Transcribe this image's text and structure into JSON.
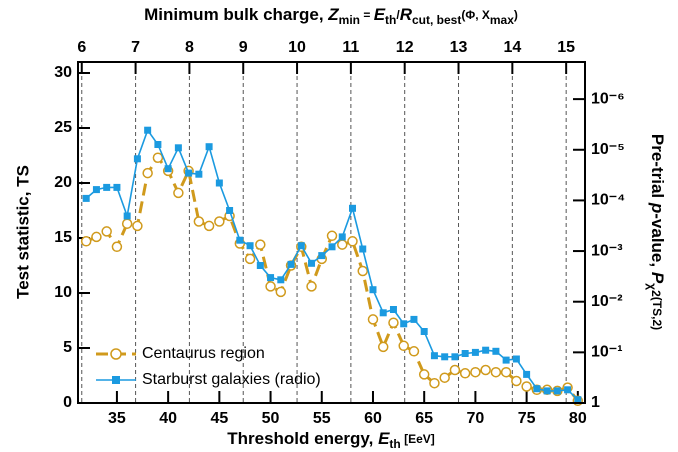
{
  "chart_data": {
    "type": "line",
    "xlabel": [
      "Threshold energy, ",
      "E",
      "th",
      "  [EeV]"
    ],
    "ylabel": "Test statistic, TS",
    "y2label": [
      "Pre-trial ",
      "p",
      "-value, ",
      "P",
      "χ",
      "2",
      "(TS,2)"
    ],
    "x2label": [
      "Minimum bulk charge, ",
      "Z",
      "min",
      " = ",
      "E",
      "th",
      "/",
      "R",
      "cut, best",
      "(Φ, X",
      "max",
      ")"
    ],
    "x": [
      32,
      33,
      34,
      35,
      36,
      37,
      38,
      39,
      40,
      41,
      42,
      43,
      44,
      45,
      46,
      47,
      48,
      49,
      50,
      51,
      52,
      53,
      54,
      55,
      56,
      57,
      58,
      59,
      60,
      61,
      62,
      63,
      64,
      65,
      66,
      67,
      68,
      69,
      70,
      71,
      72,
      73,
      74,
      75,
      76,
      77,
      78,
      79,
      80
    ],
    "series": [
      {
        "name": "Centaurus region",
        "color": "#d09a1c",
        "marker": "circle",
        "linestyle": "dashed",
        "values": [
          14.7,
          15.1,
          15.6,
          14.2,
          16.3,
          16.1,
          20.9,
          22.3,
          21.1,
          19.1,
          21.1,
          16.5,
          16.1,
          16.5,
          17.0,
          14.5,
          13.1,
          14.4,
          10.6,
          10.1,
          12.5,
          14.2,
          10.6,
          13.1,
          15.2,
          14.4,
          14.7,
          12.0,
          7.6,
          5.1,
          7.3,
          5.2,
          4.7,
          2.6,
          1.8,
          2.3,
          3.0,
          2.7,
          2.8,
          3.0,
          2.8,
          2.8,
          2.0,
          1.5,
          1.2,
          1.2,
          1.1,
          1.4,
          0.2
        ]
      },
      {
        "name": "Starburst galaxies (radio)",
        "color": "#1b9ae0",
        "marker": "square",
        "linestyle": "solid",
        "values": [
          18.6,
          19.4,
          19.6,
          19.6,
          17.0,
          22.2,
          24.8,
          23.5,
          21.3,
          23.2,
          20.9,
          20.8,
          23.3,
          20.0,
          17.5,
          14.8,
          14.3,
          12.5,
          11.4,
          11.2,
          12.6,
          14.3,
          12.7,
          13.4,
          14.2,
          15.1,
          17.7,
          14.0,
          10.3,
          8.2,
          8.5,
          7.2,
          7.6,
          6.5,
          4.3,
          4.2,
          4.2,
          4.5,
          4.6,
          4.8,
          4.7,
          3.9,
          4.0,
          2.6,
          1.3,
          1.1,
          1.1,
          1.2,
          0.3
        ]
      }
    ],
    "xlim": [
      31.2,
      80.7
    ],
    "xticks": [
      35,
      40,
      45,
      50,
      55,
      60,
      65,
      70,
      75,
      80
    ],
    "ylim": [
      0,
      31
    ],
    "yticks": [
      0,
      5,
      10,
      15,
      20,
      25,
      30
    ],
    "x2lim": [
      5.93,
      15.35
    ],
    "x2ticks": [
      6,
      7,
      8,
      9,
      10,
      11,
      12,
      13,
      14,
      15
    ],
    "x2grid": true,
    "y2lim": [
      1,
      1.85e-07
    ],
    "y2log": true,
    "y2ticks": [
      {
        "value": 1,
        "label": "1"
      },
      {
        "value": 0.1,
        "label": "10⁻¹"
      },
      {
        "value": 0.01,
        "label": "10⁻²"
      },
      {
        "value": 0.001,
        "label": "10⁻³"
      },
      {
        "value": 0.0001,
        "label": "10⁻⁴"
      },
      {
        "value": 1e-05,
        "label": "10⁻⁵"
      },
      {
        "value": 1e-06,
        "label": "10⁻⁶"
      }
    ],
    "legend": "lower-left"
  }
}
